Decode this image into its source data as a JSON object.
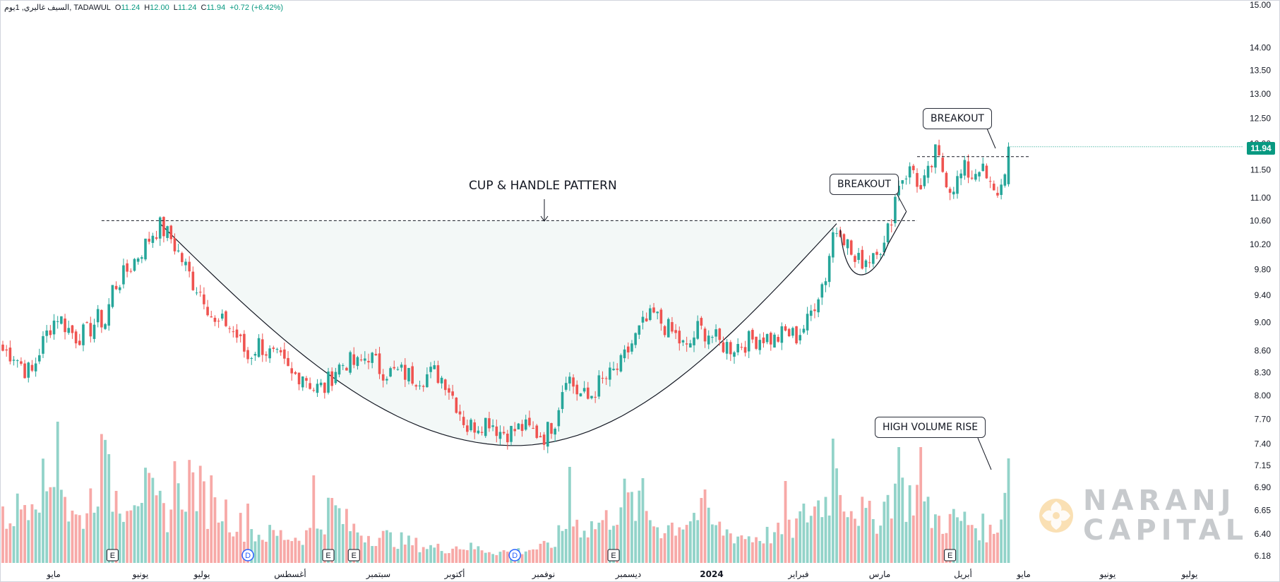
{
  "header": {
    "symbol": "السيف غاليري, 1يوم, TADAWUL",
    "open_label": "O",
    "open": "11.24",
    "high_label": "H",
    "high": "12.00",
    "low_label": "L",
    "low": "11.24",
    "close_label": "C",
    "close": "11.94",
    "change": "+0.72 (+6.42%)"
  },
  "last_price": "11.94",
  "annotations": {
    "pattern_title": "CUP & HANDLE PATTERN",
    "breakout_1": "BREAKOUT",
    "breakout_2": "BREAKOUT",
    "volume_note": "HIGH VOLUME RISE"
  },
  "logo": {
    "line1": "NARANJ",
    "line2": "CAPITAL"
  },
  "colors": {
    "up": "#26a69a",
    "down": "#ef5350",
    "up_volume": "#92d3c9",
    "down_volume": "#f7a9a7",
    "cup_fill": "#f3f8f7",
    "badge": "#089981"
  },
  "chart_data": {
    "type": "candlestick",
    "scale": "log",
    "y_ticks": [
      "15.00",
      "14.00",
      "13.50",
      "13.00",
      "12.50",
      "12.00",
      "11.50",
      "11.00",
      "10.60",
      "10.20",
      "9.80",
      "9.40",
      "9.00",
      "8.60",
      "8.30",
      "8.00",
      "7.70",
      "7.40",
      "7.15",
      "6.90",
      "6.65",
      "6.40",
      "6.18"
    ],
    "x_labels": [
      "مايو",
      "يونيو",
      "يوليو",
      "أغسطس",
      "سبتمبر",
      "أكتوبر",
      "نوفمبر",
      "ديسمبر",
      "2024",
      "فبراير",
      "مارس",
      "أبريل",
      "مايو",
      "يونيو",
      "يوليو"
    ],
    "resistance_level": 10.6,
    "handle_resistance": 11.75,
    "close_anchors": [
      [
        0,
        8.6
      ],
      [
        3,
        8.55
      ],
      [
        6,
        8.35
      ],
      [
        8,
        8.3
      ],
      [
        10,
        8.6
      ],
      [
        13,
        8.95
      ],
      [
        15,
        9.1
      ],
      [
        18,
        8.9
      ],
      [
        20,
        8.8
      ],
      [
        23,
        8.85
      ],
      [
        26,
        9.05
      ],
      [
        28,
        9.0
      ],
      [
        30,
        9.5
      ],
      [
        33,
        9.7
      ],
      [
        36,
        9.95
      ],
      [
        39,
        10.2
      ],
      [
        41,
        10.4
      ],
      [
        43,
        10.5
      ],
      [
        46,
        10.3
      ],
      [
        49,
        9.95
      ],
      [
        52,
        9.6
      ],
      [
        55,
        9.4
      ],
      [
        58,
        8.95
      ],
      [
        61,
        9.0
      ],
      [
        64,
        8.8
      ],
      [
        67,
        8.5
      ],
      [
        70,
        8.7
      ],
      [
        73,
        8.55
      ],
      [
        76,
        8.45
      ],
      [
        79,
        8.25
      ],
      [
        82,
        8.3
      ],
      [
        85,
        8.1
      ],
      [
        88,
        8.1
      ],
      [
        91,
        8.35
      ],
      [
        94,
        8.45
      ],
      [
        97,
        8.4
      ],
      [
        100,
        8.55
      ],
      [
        103,
        8.35
      ],
      [
        106,
        8.3
      ],
      [
        109,
        8.3
      ],
      [
        112,
        8.25
      ],
      [
        115,
        8.25
      ],
      [
        118,
        8.3
      ],
      [
        121,
        8.2
      ],
      [
        124,
        7.9
      ],
      [
        127,
        7.6
      ],
      [
        130,
        7.65
      ],
      [
        133,
        7.7
      ],
      [
        136,
        7.55
      ],
      [
        139,
        7.55
      ],
      [
        142,
        7.6
      ],
      [
        145,
        7.55
      ],
      [
        148,
        7.5
      ],
      [
        151,
        7.7
      ],
      [
        154,
        8.3
      ],
      [
        157,
        8.05
      ],
      [
        160,
        7.95
      ],
      [
        163,
        8.15
      ],
      [
        166,
        8.25
      ],
      [
        169,
        8.4
      ],
      [
        172,
        8.7
      ],
      [
        175,
        8.95
      ],
      [
        178,
        9.1
      ],
      [
        181,
        8.95
      ],
      [
        184,
        8.8
      ],
      [
        187,
        8.6
      ],
      [
        190,
        8.9
      ],
      [
        193,
        8.85
      ],
      [
        196,
        8.7
      ],
      [
        199,
        8.65
      ],
      [
        202,
        8.7
      ],
      [
        205,
        8.75
      ],
      [
        208,
        8.8
      ],
      [
        211,
        8.75
      ],
      [
        214,
        8.85
      ],
      [
        217,
        8.8
      ],
      [
        220,
        9.0
      ],
      [
        223,
        9.45
      ],
      [
        225,
        9.7
      ],
      [
        227,
        10.4
      ],
      [
        229,
        10.5
      ],
      [
        231,
        10.2
      ],
      [
        233,
        9.9
      ],
      [
        235,
        9.95
      ],
      [
        237,
        10.0
      ],
      [
        239,
        10.2
      ],
      [
        241,
        10.15
      ],
      [
        243,
        10.7
      ],
      [
        245,
        11.3
      ],
      [
        247,
        11.45
      ],
      [
        249,
        11.5
      ],
      [
        251,
        11.1
      ],
      [
        253,
        11.4
      ],
      [
        255,
        11.8
      ],
      [
        257,
        11.5
      ],
      [
        259,
        11.2
      ],
      [
        261,
        11.3
      ],
      [
        263,
        11.5
      ],
      [
        265,
        11.4
      ],
      [
        267,
        11.6
      ],
      [
        269,
        11.3
      ],
      [
        271,
        11.05
      ],
      [
        273,
        11.2
      ],
      [
        275,
        11.94
      ]
    ],
    "volume_anchors": [
      [
        0,
        0.3
      ],
      [
        5,
        0.4
      ],
      [
        9,
        0.6
      ],
      [
        12,
        0.5
      ],
      [
        15,
        0.8
      ],
      [
        18,
        0.35
      ],
      [
        21,
        0.3
      ],
      [
        24,
        0.45
      ],
      [
        27,
        0.7
      ],
      [
        30,
        0.5
      ],
      [
        33,
        0.45
      ],
      [
        36,
        0.55
      ],
      [
        39,
        0.5
      ],
      [
        42,
        0.4
      ],
      [
        45,
        0.35
      ],
      [
        48,
        0.45
      ],
      [
        51,
        0.6
      ],
      [
        54,
        0.5
      ],
      [
        57,
        0.35
      ],
      [
        60,
        0.4
      ],
      [
        63,
        0.3
      ],
      [
        66,
        0.25
      ],
      [
        70,
        0.2
      ],
      [
        75,
        0.2
      ],
      [
        80,
        0.18
      ],
      [
        85,
        0.22
      ],
      [
        90,
        0.4
      ],
      [
        95,
        0.25
      ],
      [
        100,
        0.2
      ],
      [
        105,
        0.18
      ],
      [
        110,
        0.15
      ],
      [
        115,
        0.12
      ],
      [
        120,
        0.1
      ],
      [
        125,
        0.12
      ],
      [
        130,
        0.1
      ],
      [
        135,
        0.08
      ],
      [
        140,
        0.08
      ],
      [
        145,
        0.1
      ],
      [
        150,
        0.12
      ],
      [
        155,
        0.3
      ],
      [
        160,
        0.25
      ],
      [
        165,
        0.3
      ],
      [
        170,
        0.45
      ],
      [
        175,
        0.35
      ],
      [
        180,
        0.25
      ],
      [
        185,
        0.28
      ],
      [
        190,
        0.35
      ],
      [
        195,
        0.25
      ],
      [
        200,
        0.2
      ],
      [
        205,
        0.18
      ],
      [
        210,
        0.2
      ],
      [
        215,
        0.22
      ],
      [
        220,
        0.35
      ],
      [
        225,
        0.45
      ],
      [
        228,
        0.6
      ],
      [
        231,
        0.45
      ],
      [
        235,
        0.35
      ],
      [
        238,
        0.3
      ],
      [
        241,
        0.4
      ],
      [
        244,
        0.55
      ],
      [
        247,
        0.45
      ],
      [
        250,
        0.5
      ],
      [
        253,
        0.35
      ],
      [
        256,
        0.3
      ],
      [
        259,
        0.3
      ],
      [
        262,
        0.3
      ],
      [
        265,
        0.28
      ],
      [
        268,
        0.25
      ],
      [
        271,
        0.2
      ],
      [
        274,
        0.5
      ]
    ],
    "volume_spikes": [
      [
        15,
        1.0
      ],
      [
        29,
        0.77
      ],
      [
        47,
        0.72
      ],
      [
        57,
        0.62
      ],
      [
        67,
        0.42
      ],
      [
        85,
        0.62
      ],
      [
        155,
        0.68
      ],
      [
        175,
        0.6
      ],
      [
        192,
        0.52
      ],
      [
        214,
        0.58
      ],
      [
        227,
        0.88
      ],
      [
        245,
        0.82
      ],
      [
        251,
        0.82
      ],
      [
        275,
        0.74
      ]
    ],
    "events": [
      {
        "type": "E",
        "bar": 30
      },
      {
        "type": "D",
        "bar": 67
      },
      {
        "type": "E",
        "bar": 89
      },
      {
        "type": "E",
        "bar": 96
      },
      {
        "type": "D",
        "bar": 140
      },
      {
        "type": "E",
        "bar": 167
      },
      {
        "type": "E",
        "bar": 259
      }
    ]
  }
}
